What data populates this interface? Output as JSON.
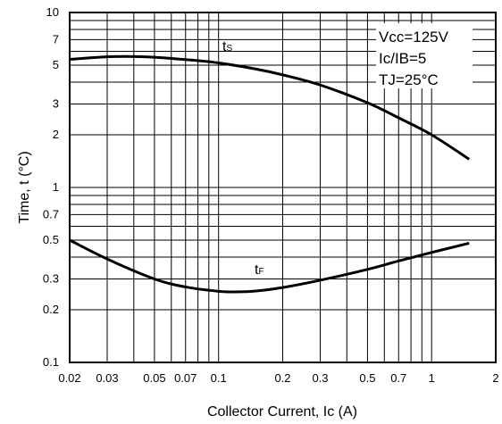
{
  "chart_data": {
    "type": "line",
    "xlabel": "Collector Current, Ic (A)",
    "ylabel": "Time, t (°C)",
    "x_scale": "log",
    "y_scale": "log",
    "xlim": [
      0.02,
      2
    ],
    "ylim": [
      0.1,
      10
    ],
    "grid": true,
    "x_ticks": [
      {
        "value": 0.02,
        "label": "0.02"
      },
      {
        "value": 0.03,
        "label": "0.03"
      },
      {
        "value": 0.05,
        "label": "0.05"
      },
      {
        "value": 0.07,
        "label": "0.07"
      },
      {
        "value": 0.1,
        "label": "0.1"
      },
      {
        "value": 0.2,
        "label": "0.2"
      },
      {
        "value": 0.3,
        "label": "0.3"
      },
      {
        "value": 0.5,
        "label": "0.5"
      },
      {
        "value": 0.7,
        "label": "0.7"
      },
      {
        "value": 1,
        "label": "1"
      },
      {
        "value": 2,
        "label": "2"
      }
    ],
    "y_ticks": [
      {
        "value": 10,
        "label": "10"
      },
      {
        "value": 7,
        "label": "7"
      },
      {
        "value": 5,
        "label": "5"
      },
      {
        "value": 3,
        "label": "3"
      },
      {
        "value": 2,
        "label": "2"
      },
      {
        "value": 1,
        "label": "1"
      },
      {
        "value": 0.7,
        "label": "0.7"
      },
      {
        "value": 0.5,
        "label": "0.5"
      },
      {
        "value": 0.3,
        "label": "0.3"
      },
      {
        "value": 0.2,
        "label": "0.2"
      },
      {
        "value": 0.1,
        "label": "0.1"
      }
    ],
    "conditions": [
      "Vcc=125V",
      "Ic/IB=5",
      "TJ=25°C"
    ],
    "series": [
      {
        "label_main": "t",
        "label_sub": "S",
        "x": [
          0.02,
          0.03,
          0.04,
          0.05,
          0.07,
          0.1,
          0.15,
          0.2,
          0.3,
          0.5,
          0.7,
          1.0,
          1.5
        ],
        "values": [
          5.4,
          5.58,
          5.6,
          5.55,
          5.38,
          5.15,
          4.75,
          4.4,
          3.85,
          3.05,
          2.5,
          2.0,
          1.45
        ]
      },
      {
        "label_main": "t",
        "label_sub": "F",
        "x": [
          0.02,
          0.03,
          0.05,
          0.07,
          0.1,
          0.12,
          0.15,
          0.2,
          0.3,
          0.5,
          0.7,
          1.0,
          1.5
        ],
        "values": [
          0.5,
          0.39,
          0.3,
          0.27,
          0.255,
          0.253,
          0.256,
          0.268,
          0.295,
          0.34,
          0.38,
          0.425,
          0.48
        ]
      }
    ]
  }
}
